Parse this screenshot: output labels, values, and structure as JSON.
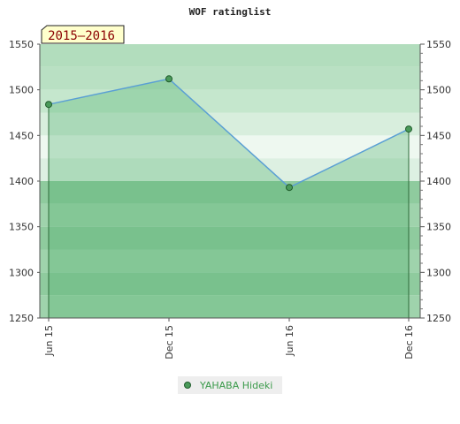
{
  "chart_data": {
    "type": "area",
    "title": "WOF ratinglist",
    "period_label": "2015–2016",
    "x": [
      "Jun 15",
      "Dec 15",
      "Jun 16",
      "Dec 16"
    ],
    "series": [
      {
        "name": "YAHABA Hideki",
        "values": [
          1484,
          1512,
          1393,
          1457
        ]
      }
    ],
    "ylim": [
      1250,
      1550
    ],
    "y_ticks": [
      1250,
      1300,
      1350,
      1400,
      1450,
      1500,
      1550
    ],
    "y_tick_labels": [
      "1250",
      "1300",
      "1350",
      "1400",
      "1450",
      "1500",
      "1550"
    ],
    "y_axis_both_sides": true,
    "x_tick_rotation": "vertical",
    "legend_position": "bottom-center",
    "colors": {
      "line": "#5a9fd4",
      "area": "#4caf6a",
      "marker": "#4a9a5a",
      "badge_bg": "#ffffcc",
      "legend_text": "#3a9a4a"
    }
  }
}
